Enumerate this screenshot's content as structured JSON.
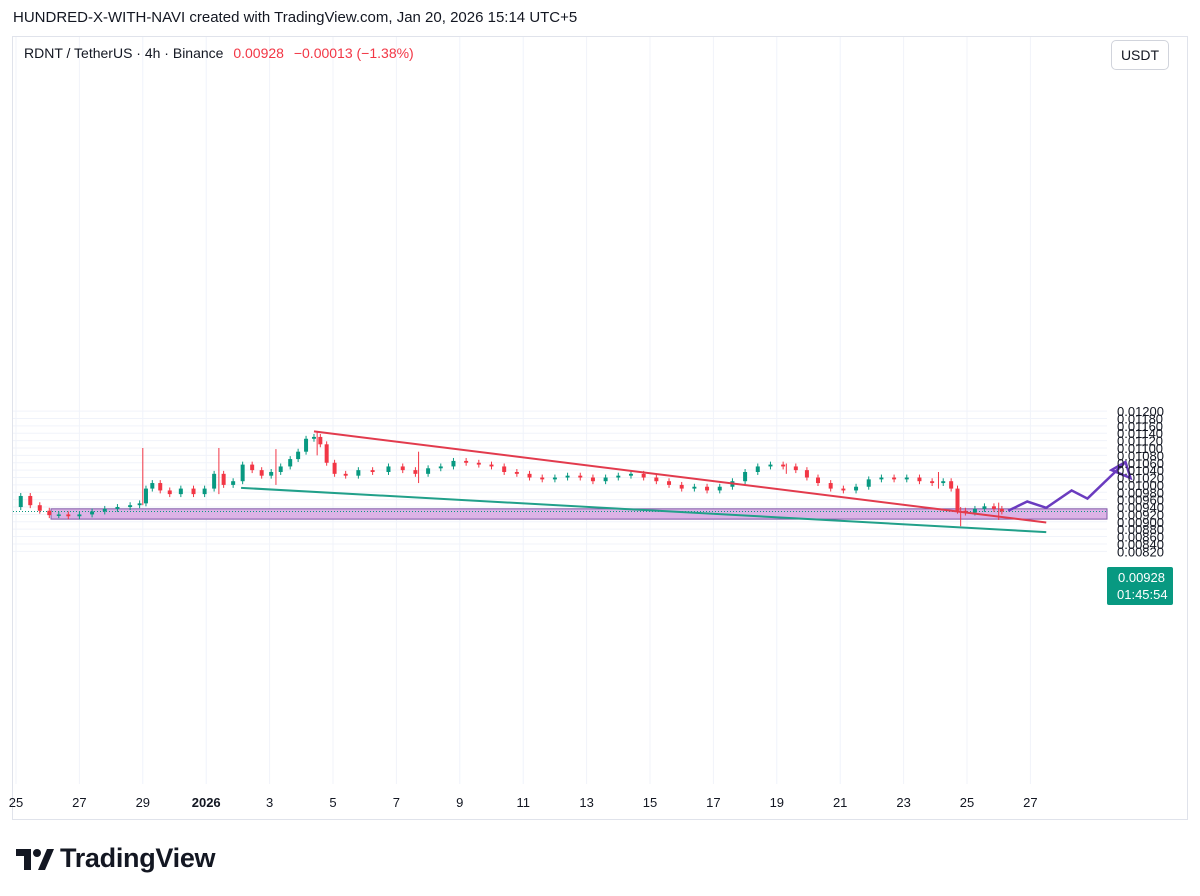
{
  "credit": "HUNDRED-X-WITH-NAVI created with TradingView.com, Jan 20, 2026 15:14 UTC+5",
  "legend": {
    "symbol": "RDNT / TetherUS · 4h · Binance",
    "last": "0.00928",
    "change": "−0.00013 (−1.38%)"
  },
  "currency": "USDT",
  "price_label": {
    "value": "0.00928",
    "countdown": "01:45:54"
  },
  "brand": "TradingView",
  "colors": {
    "up": "#089981",
    "down": "#f23645",
    "zone": "#dcb3e6",
    "resistance": "#e23b4d",
    "support": "#21a08a",
    "projection": "#6a3bbf"
  },
  "chart_data": {
    "type": "candlestick",
    "y_axis": {
      "ticks": [
        "0.01200",
        "0.01180",
        "0.01160",
        "0.01140",
        "0.01120",
        "0.01100",
        "0.01080",
        "0.01060",
        "0.01040",
        "0.01020",
        "0.01000",
        "0.00980",
        "0.00960",
        "0.00940",
        "0.00920",
        "0.00900",
        "0.00880",
        "0.00860",
        "0.00840",
        "0.00820"
      ],
      "range": [
        0.00812,
        0.01203
      ]
    },
    "x_axis": {
      "ticks": [
        "25",
        "27",
        "29",
        "2026",
        "3",
        "5",
        "7",
        "9",
        "11",
        "13",
        "15",
        "17",
        "19",
        "21",
        "23",
        "25",
        "27"
      ]
    },
    "path": [
      [
        25.0,
        0.0094
      ],
      [
        25.3,
        0.0097
      ],
      [
        25.6,
        0.00945
      ],
      [
        25.9,
        0.0093
      ],
      [
        26.2,
        0.00918
      ],
      [
        26.5,
        0.0092
      ],
      [
        26.8,
        0.00915
      ],
      [
        27.2,
        0.0092
      ],
      [
        27.6,
        0.00928
      ],
      [
        28.0,
        0.00935
      ],
      [
        28.4,
        0.0094
      ],
      [
        28.8,
        0.00945
      ],
      [
        29.0,
        0.0095
      ],
      [
        29.2,
        0.0099
      ],
      [
        29.4,
        0.01005
      ],
      [
        29.7,
        0.00985
      ],
      [
        30.0,
        0.00975
      ],
      [
        30.4,
        0.0099
      ],
      [
        30.8,
        0.00975
      ],
      [
        31.1,
        0.0099
      ],
      [
        31.4,
        0.0103
      ],
      [
        31.7,
        0.01
      ],
      [
        32.0,
        0.0101
      ],
      [
        32.3,
        0.01055
      ],
      [
        32.6,
        0.0104
      ],
      [
        32.9,
        0.01025
      ],
      [
        33.2,
        0.01035
      ],
      [
        33.5,
        0.0105
      ],
      [
        33.8,
        0.0107
      ],
      [
        34.0,
        0.0109
      ],
      [
        34.3,
        0.01125
      ],
      [
        34.5,
        0.0113
      ],
      [
        34.7,
        0.0111
      ],
      [
        34.9,
        0.0106
      ],
      [
        35.2,
        0.0103
      ],
      [
        35.6,
        0.01025
      ],
      [
        36.0,
        0.0104
      ],
      [
        36.5,
        0.01035
      ],
      [
        37.0,
        0.0105
      ],
      [
        37.4,
        0.0104
      ],
      [
        37.8,
        0.0103
      ],
      [
        38.2,
        0.01045
      ],
      [
        38.6,
        0.0105
      ],
      [
        39.0,
        0.01065
      ],
      [
        39.4,
        0.0106
      ],
      [
        39.8,
        0.01055
      ],
      [
        40.2,
        0.0105
      ],
      [
        40.6,
        0.01035
      ],
      [
        41.0,
        0.0103
      ],
      [
        41.4,
        0.0102
      ],
      [
        41.8,
        0.01015
      ],
      [
        42.2,
        0.0102
      ],
      [
        42.6,
        0.01025
      ],
      [
        43.0,
        0.0102
      ],
      [
        43.4,
        0.0101
      ],
      [
        43.8,
        0.0102
      ],
      [
        44.2,
        0.01025
      ],
      [
        44.6,
        0.0103
      ],
      [
        45.0,
        0.0102
      ],
      [
        45.4,
        0.0101
      ],
      [
        45.8,
        0.01
      ],
      [
        46.2,
        0.0099
      ],
      [
        46.6,
        0.00995
      ],
      [
        47.0,
        0.00985
      ],
      [
        47.4,
        0.00995
      ],
      [
        47.8,
        0.0101
      ],
      [
        48.2,
        0.01035
      ],
      [
        48.6,
        0.0105
      ],
      [
        49.0,
        0.01055
      ],
      [
        49.4,
        0.0105
      ],
      [
        49.8,
        0.0104
      ],
      [
        50.1,
        0.0102
      ],
      [
        50.5,
        0.01005
      ],
      [
        50.9,
        0.0099
      ],
      [
        51.3,
        0.00985
      ],
      [
        51.7,
        0.00995
      ],
      [
        52.1,
        0.01015
      ],
      [
        52.5,
        0.0102
      ],
      [
        52.9,
        0.01015
      ],
      [
        53.3,
        0.0102
      ],
      [
        53.7,
        0.0101
      ],
      [
        54.1,
        0.01005
      ],
      [
        54.4,
        0.0101
      ],
      [
        54.6,
        0.0099
      ],
      [
        54.8,
        0.0093
      ],
      [
        55.1,
        0.00925
      ],
      [
        55.4,
        0.00935
      ],
      [
        55.7,
        0.00942
      ],
      [
        56.0,
        0.00935
      ],
      [
        56.2,
        0.00928
      ]
    ],
    "wicks": [
      {
        "x": 29.0,
        "from": 0.00945,
        "to": 0.011
      },
      {
        "x": 31.4,
        "from": 0.00975,
        "to": 0.011
      },
      {
        "x": 33.2,
        "from": 0.01,
        "to": 0.01097
      },
      {
        "x": 34.5,
        "from": 0.0108,
        "to": 0.01145
      },
      {
        "x": 37.7,
        "from": 0.01005,
        "to": 0.0109
      },
      {
        "x": 49.3,
        "from": 0.0103,
        "to": 0.01058
      },
      {
        "x": 54.1,
        "from": 0.0099,
        "to": 0.01035
      },
      {
        "x": 54.8,
        "from": 0.00888,
        "to": 0.0094
      },
      {
        "x": 56.0,
        "from": 0.00905,
        "to": 0.00952
      }
    ],
    "drawings": {
      "resistance_line": [
        [
          34.4,
          0.01145
        ],
        [
          57.5,
          0.00898
        ]
      ],
      "support_line": [
        [
          32.1,
          0.00992
        ],
        [
          57.5,
          0.00872
        ]
      ],
      "demand_zone": {
        "x": [
          25.6,
          60.0
        ],
        "y": [
          0.0091,
          0.00927
        ]
      },
      "projection_path": [
        [
          56.3,
          0.0093
        ],
        [
          56.9,
          0.00955
        ],
        [
          57.5,
          0.00938
        ],
        [
          58.3,
          0.00985
        ],
        [
          58.8,
          0.00963
        ],
        [
          60.0,
          0.01062
        ]
      ],
      "current_price": 0.00928
    }
  }
}
